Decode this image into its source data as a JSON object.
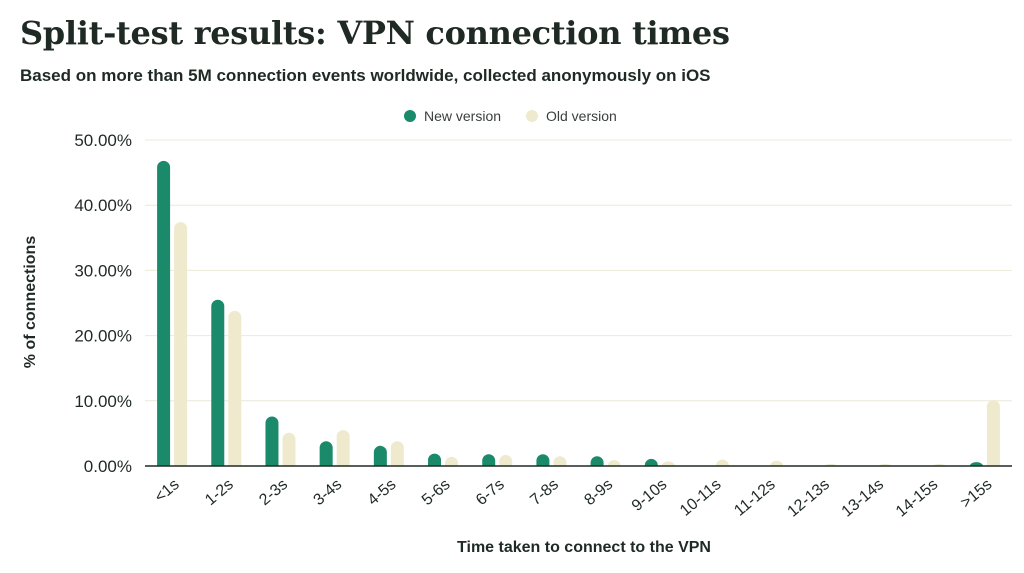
{
  "chart_data": {
    "type": "bar",
    "title": "Split-test results: VPN connection times",
    "subtitle": "Based on more than 5M connection events worldwide, collected anonymously on iOS",
    "xlabel": "Time taken to connect to the VPN",
    "ylabel": "% of connections",
    "categories": [
      "<1s",
      "1-2s",
      "2-3s",
      "3-4s",
      "4-5s",
      "5-6s",
      "6-7s",
      "7-8s",
      "8-9s",
      "9-10s",
      "10-11s",
      "11-12s",
      "12-13s",
      "13-14s",
      "14-15s",
      ">15s"
    ],
    "series": [
      {
        "name": "New version",
        "color": "#1a8a6a",
        "values": [
          46.8,
          25.5,
          7.6,
          3.8,
          3.1,
          1.9,
          1.8,
          1.8,
          1.5,
          1.1,
          0.0,
          0.0,
          0.0,
          0.0,
          0.0,
          0.6
        ]
      },
      {
        "name": "Old version",
        "color": "#efeacd",
        "values": [
          37.4,
          23.8,
          5.1,
          5.5,
          3.8,
          1.4,
          1.7,
          1.5,
          0.9,
          0.7,
          1.0,
          0.8,
          0.3,
          0.3,
          0.3,
          10.1
        ]
      }
    ],
    "ylim": [
      0,
      50
    ],
    "yticks": [
      0,
      10,
      20,
      30,
      40,
      50
    ],
    "ytick_labels": [
      "0.00%",
      "10.00%",
      "20.00%",
      "30.00%",
      "40.00%",
      "50.00%"
    ],
    "grid": true,
    "legend_position": "top-center"
  }
}
